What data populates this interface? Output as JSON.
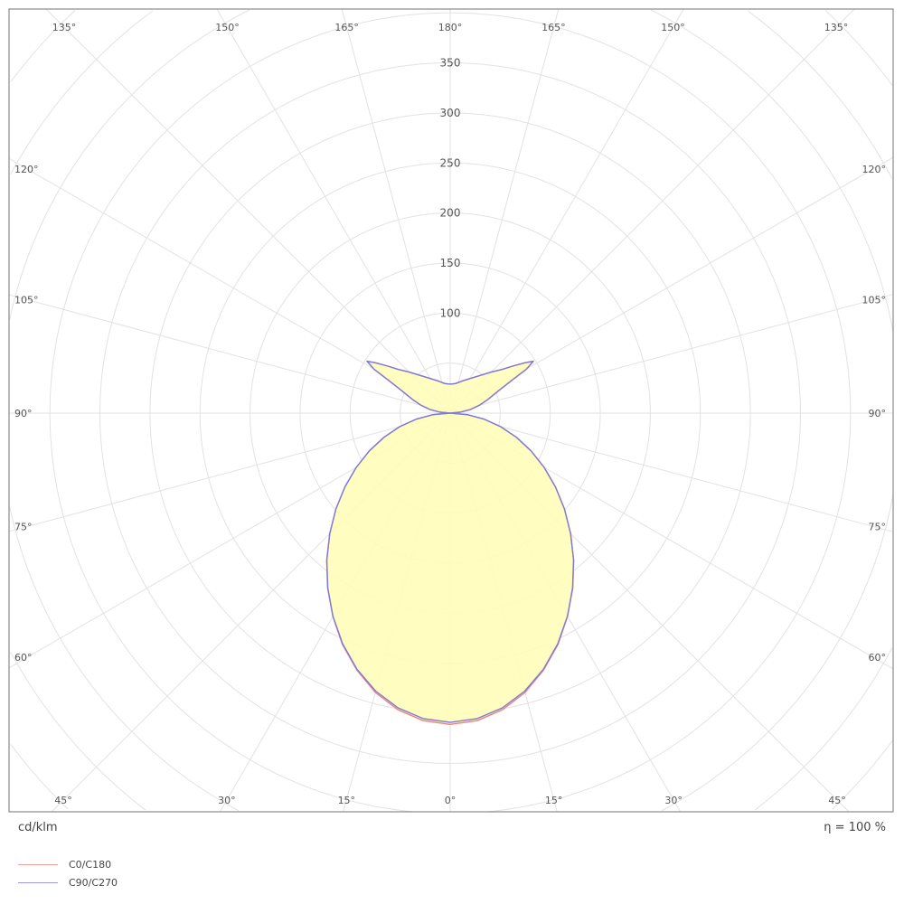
{
  "chart_data": {
    "type": "polar",
    "unit_label": "cd/klm",
    "efficiency_label": "η = 100 %",
    "radial_ticks": [
      100,
      150,
      200,
      250,
      300,
      350
    ],
    "radial_grid_step": 50,
    "radial_max": 600,
    "angle_grid_step": 15,
    "angle_labels": {
      "top": [
        "135°",
        "150°",
        "165°",
        "180°",
        "165°",
        "150°",
        "135°"
      ],
      "sides": [
        "120°",
        "105°",
        "90°",
        "75°",
        "60°"
      ],
      "bottom": [
        "45°",
        "30°",
        "15°",
        "0°",
        "15°",
        "30°",
        "45°"
      ]
    },
    "grid": true,
    "fill_color": "#fffdb8",
    "legend_position": "bottom-left",
    "angles": [
      0,
      5,
      10,
      15,
      20,
      25,
      30,
      35,
      40,
      45,
      50,
      55,
      60,
      65,
      70,
      75,
      80,
      85,
      90,
      95,
      100,
      105,
      110,
      115,
      118,
      120,
      122,
      124,
      127,
      130,
      135,
      140,
      150,
      160,
      170,
      180
    ],
    "series": [
      {
        "name": "C0/C180",
        "color": "#f08080",
        "values": [
          311,
          308.5,
          301,
          289,
          273,
          255,
          234.5,
          213.5,
          192,
          170.2,
          149,
          128.4,
          108.4,
          89.1,
          70.4,
          52.3,
          34.6,
          17.2,
          0,
          10,
          20,
          30,
          40,
          54,
          70,
          88,
          98,
          90,
          78,
          68,
          58,
          50,
          40,
          34,
          30,
          29
        ]
      },
      {
        "name": "C90/C270",
        "color": "#7b7bdb",
        "values": [
          309,
          306.5,
          299.2,
          287.6,
          272.3,
          254.3,
          234.3,
          213.3,
          191.8,
          170.2,
          149,
          128.4,
          108.4,
          89.1,
          70.4,
          52.3,
          34.6,
          17.2,
          0,
          10,
          20,
          30,
          40,
          54,
          70,
          88,
          98,
          90,
          78,
          68,
          58,
          50,
          40,
          34,
          30,
          29
        ]
      }
    ]
  }
}
